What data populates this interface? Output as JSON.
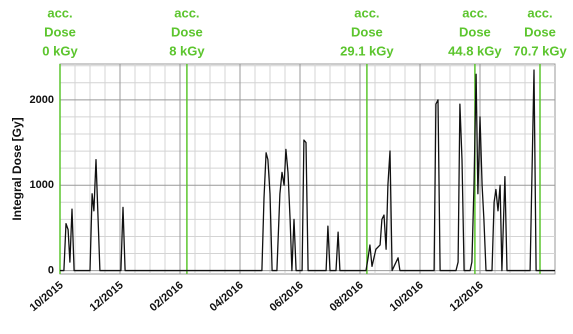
{
  "chart_data": {
    "type": "line",
    "y_label": "Integral Dose [Gy]",
    "series": [
      {
        "name": "Integral Dose",
        "color": "#111111",
        "x": [
          0,
          0.13,
          0.2,
          0.27,
          0.33,
          0.4,
          0.47,
          1,
          1.07,
          1.13,
          1.2,
          1.27,
          1.33,
          2.03,
          2.1,
          2.17,
          6.73,
          6.8,
          6.87,
          6.93,
          7,
          7.07,
          7.23,
          7.33,
          7.4,
          7.47,
          7.53,
          7.6,
          7.67,
          7.73,
          7.8,
          7.87,
          8.07,
          8.13,
          8.2,
          8.27,
          8.87,
          8.93,
          9,
          9.2,
          9.27,
          9.33,
          10.2,
          10.27,
          10.33,
          10.4,
          10.53,
          10.67,
          10.73,
          10.8,
          10.87,
          10.93,
          11,
          11.07,
          11.27,
          11.33,
          12.47,
          12.53,
          12.6,
          12.67,
          13.2,
          13.27,
          13.33,
          13.4,
          13.47,
          13.67,
          13.73,
          13.8,
          13.87,
          13.93,
          14,
          14.07,
          14.13,
          14.2,
          14.4,
          14.47,
          14.53,
          14.6,
          14.67,
          14.73,
          14.83,
          14.9,
          15.67,
          15.8,
          15.87,
          16.5
        ],
        "values": [
          0,
          0,
          550,
          480,
          100,
          720,
          0,
          0,
          900,
          700,
          1300,
          600,
          0,
          0,
          740,
          0,
          0,
          850,
          1380,
          1300,
          900,
          0,
          0,
          900,
          1150,
          1000,
          1420,
          1150,
          600,
          0,
          600,
          0,
          0,
          1530,
          1500,
          0,
          0,
          520,
          0,
          0,
          450,
          0,
          0,
          150,
          300,
          50,
          250,
          300,
          600,
          650,
          250,
          1000,
          1400,
          0,
          150,
          0,
          0,
          1950,
          2000,
          0,
          0,
          100,
          1950,
          1300,
          0,
          0,
          100,
          1000,
          2300,
          900,
          1800,
          1000,
          600,
          0,
          0,
          800,
          950,
          700,
          1000,
          0,
          1100,
          0,
          0,
          2350,
          0,
          0
        ]
      }
    ],
    "xlim": [
      0,
      16.5
    ],
    "xticks": [
      {
        "value": 0,
        "label": "10/2015"
      },
      {
        "value": 2,
        "label": "12/2015"
      },
      {
        "value": 4,
        "label": "02/2016"
      },
      {
        "value": 6,
        "label": "04/2016"
      },
      {
        "value": 8,
        "label": "06/2016"
      },
      {
        "value": 10,
        "label": "08/2016"
      },
      {
        "value": 12,
        "label": "10/2016"
      },
      {
        "value": 14,
        "label": "12/2016"
      }
    ],
    "ylim": [
      -40,
      2420
    ],
    "yticks": [
      0,
      1000,
      2000
    ],
    "x_minor_grid": [
      0.5,
      1,
      1.5,
      2.5,
      3,
      3.5,
      4.5,
      5,
      5.5,
      6.5,
      7,
      7.5,
      8.5,
      9,
      9.5,
      10.5,
      11,
      11.5,
      12.5,
      13,
      13.5,
      14.5,
      15,
      15.5,
      16
    ],
    "y_minor_grid": [
      200,
      400,
      600,
      800,
      1200,
      1400,
      1600,
      1800,
      2200,
      2400
    ],
    "grid": true,
    "annotations": [
      {
        "x": 0,
        "lines": [
          "acc.",
          "Dose",
          "0 kGy"
        ]
      },
      {
        "x": 4.23,
        "lines": [
          "acc.",
          "Dose",
          "8 kGy"
        ]
      },
      {
        "x": 10.23,
        "lines": [
          "acc.",
          "Dose",
          "29.1 kGy"
        ]
      },
      {
        "x": 13.83,
        "lines": [
          "acc.",
          "Dose",
          "44.8 kGy"
        ]
      },
      {
        "x": 16,
        "lines": [
          "acc.",
          "Dose",
          "70.7 kGy"
        ]
      }
    ],
    "annotation_color": "#5cc52e"
  }
}
